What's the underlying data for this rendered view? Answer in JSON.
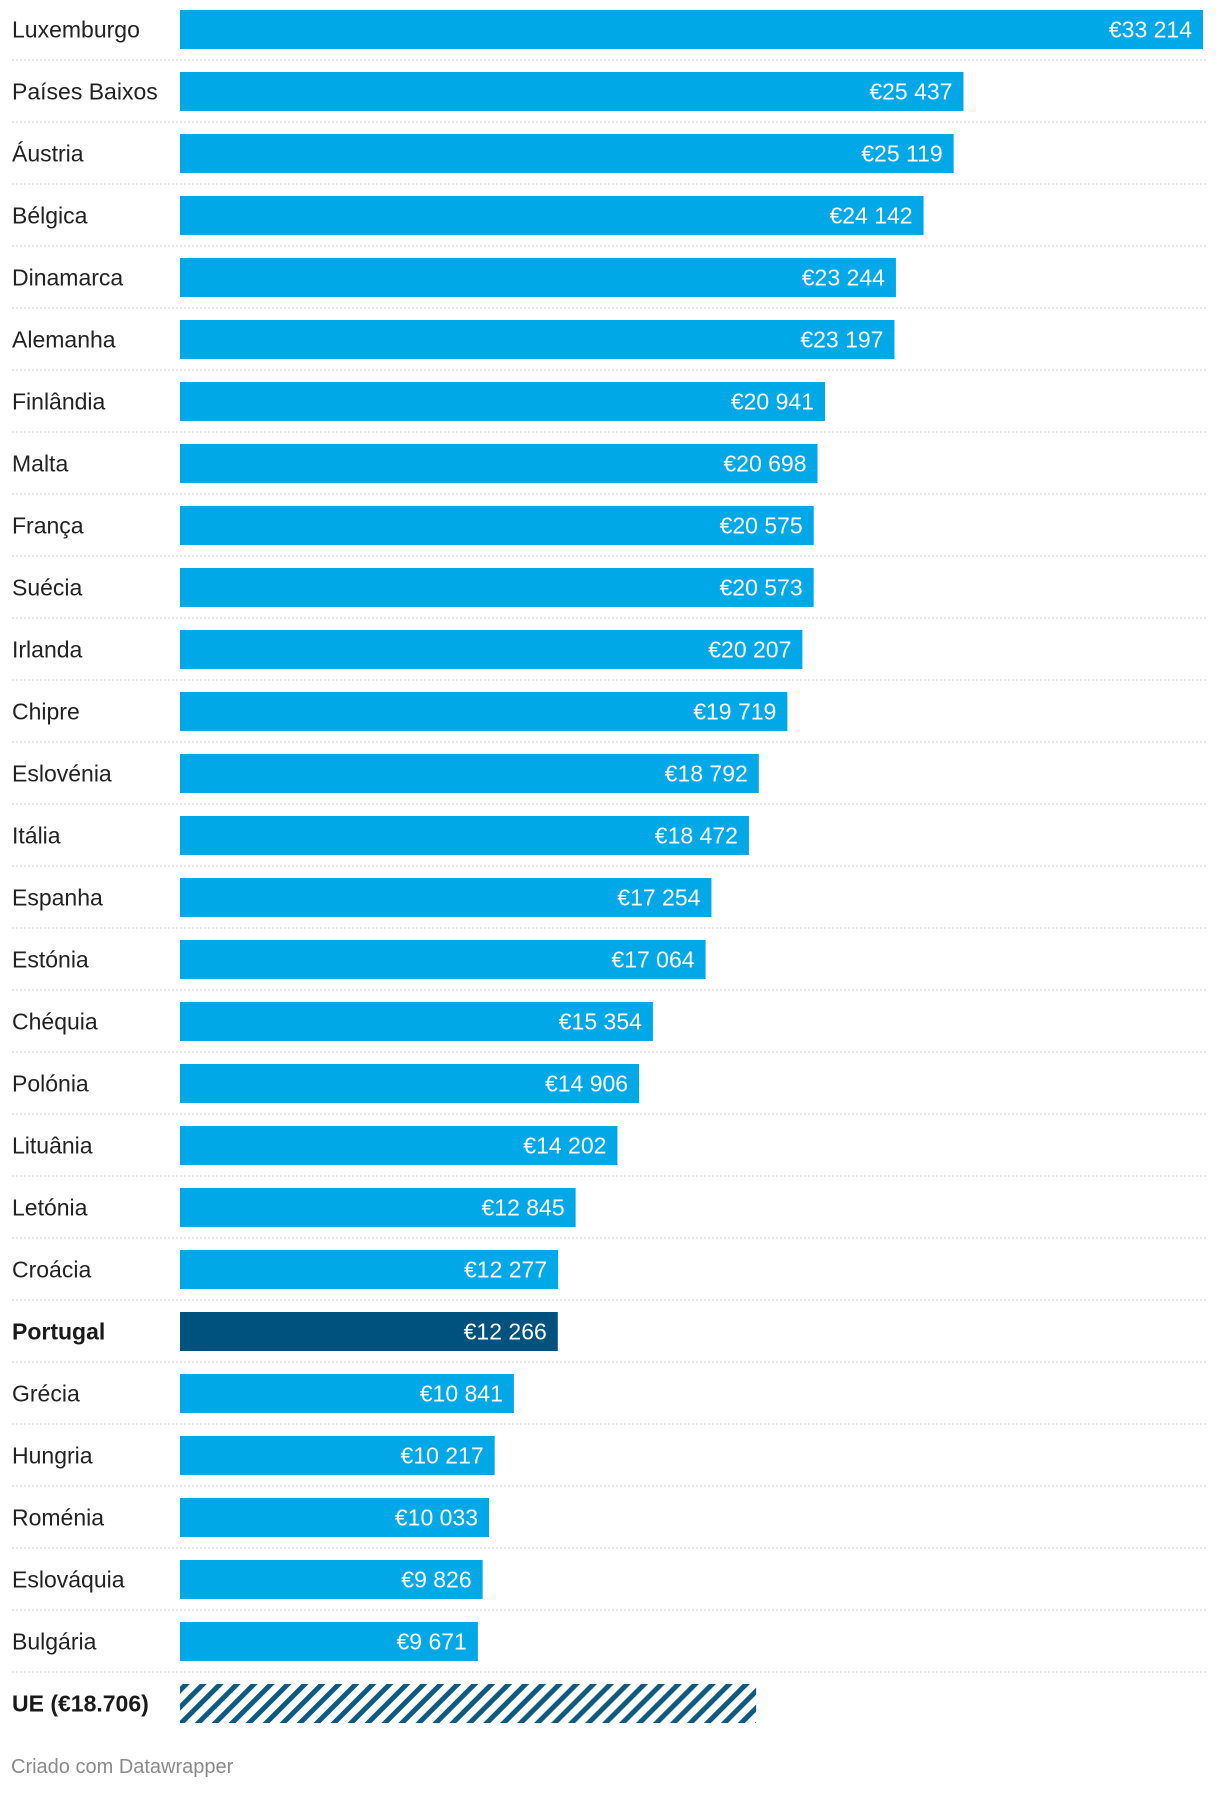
{
  "chart_data": {
    "type": "bar",
    "orientation": "horizontal",
    "categories": [
      "Luxemburgo",
      "Países Baixos",
      "Áustria",
      "Bélgica",
      "Dinamarca",
      "Alemanha",
      "Finlândia",
      "Malta",
      "França",
      "Suécia",
      "Irlanda",
      "Chipre",
      "Eslovénia",
      "Itália",
      "Espanha",
      "Estónia",
      "Chéquia",
      "Polónia",
      "Lituânia",
      "Letónia",
      "Croácia",
      "Portugal",
      "Grécia",
      "Hungria",
      "Roménia",
      "Eslováquia",
      "Bulgária"
    ],
    "values": [
      33214,
      25437,
      25119,
      24142,
      23244,
      23197,
      20941,
      20698,
      20575,
      20573,
      20207,
      19719,
      18792,
      18472,
      17254,
      17064,
      15354,
      14906,
      14202,
      12845,
      12277,
      12266,
      10841,
      10217,
      10033,
      9826,
      9671
    ],
    "value_labels": [
      "€33 214",
      "€25 437",
      "€25 119",
      "€24 142",
      "€23 244",
      "€23 197",
      "€20 941",
      "€20 698",
      "€20 575",
      "€20 573",
      "€20 207",
      "€19 719",
      "€18 792",
      "€18 472",
      "€17 254",
      "€17 064",
      "€15 354",
      "€14 906",
      "€14 202",
      "€12 845",
      "€12 277",
      "€12 266",
      "€10 841",
      "€10 217",
      "€10 033",
      "€9 826",
      "€9 671"
    ],
    "highlight": "Portugal",
    "reference": {
      "label": "UE (€18.706)",
      "value": 18706
    },
    "xlim": [
      0,
      33214
    ],
    "grid": false,
    "legend": "none",
    "colors": {
      "bar": "#00A8E8",
      "highlight": "#00527E",
      "reference": "#0F5A80",
      "separator": "#cccccc"
    }
  },
  "footer": {
    "credit": "Criado com Datawrapper"
  }
}
